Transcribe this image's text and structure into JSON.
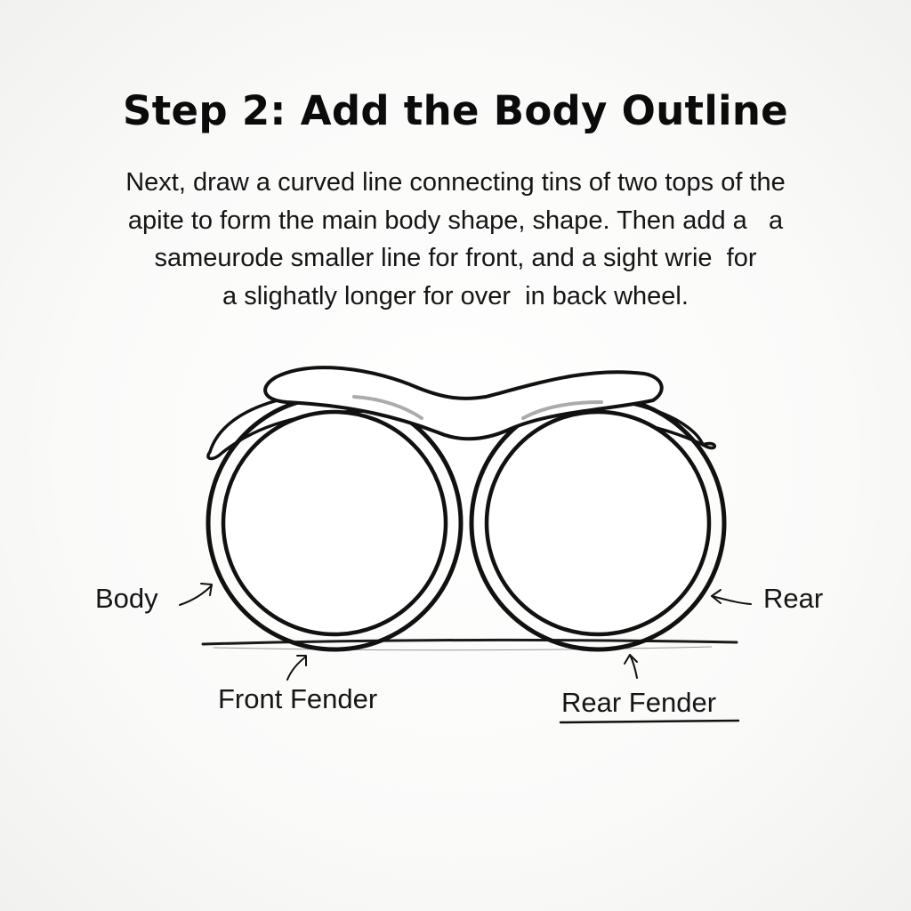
{
  "title": "Step 2: Add the Body Outline",
  "instructions": [
    "Next, draw a curved line connecting tins of two tops of the",
    "apite to form the main body shape, shape. Then add a   a",
    "sameurode smaller line for front, and a sight wrie  for",
    "a slighatly longer for over  in back wheel."
  ],
  "labels": {
    "body": "Body",
    "rear": "Rear",
    "front_fender": "Front Fender",
    "rear_fender": "Rear Fender"
  },
  "colors": {
    "ink": "#111111",
    "background": "#fafaf9"
  }
}
